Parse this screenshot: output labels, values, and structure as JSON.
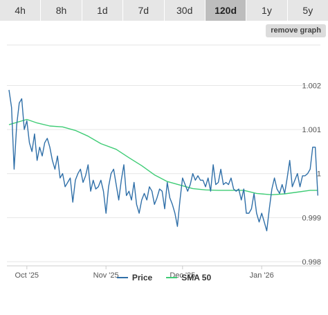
{
  "range_buttons": [
    {
      "label": "4h",
      "active": false
    },
    {
      "label": "8h",
      "active": false
    },
    {
      "label": "1d",
      "active": false
    },
    {
      "label": "7d",
      "active": false
    },
    {
      "label": "30d",
      "active": false
    },
    {
      "label": "120d",
      "active": true
    },
    {
      "label": "1y",
      "active": false
    },
    {
      "label": "5y",
      "active": false
    }
  ],
  "remove_graph_label": "remove graph",
  "chart_data": {
    "type": "line",
    "title": "",
    "xlabel": "",
    "ylabel": "",
    "ylim": [
      0.998,
      1.0022
    ],
    "y_ticks": [
      {
        "value": 0.998,
        "label": "0.998"
      },
      {
        "value": 0.999,
        "label": "0.999"
      },
      {
        "value": 1.0,
        "label": "1"
      },
      {
        "value": 1.001,
        "label": "1.001"
      },
      {
        "value": 1.002,
        "label": "1.002"
      }
    ],
    "x_ticks": [
      {
        "value": "2025-10-01",
        "label": "Oct '25"
      },
      {
        "value": "2025-11-01",
        "label": "Nov '25"
      },
      {
        "value": "2025-12-01",
        "label": "Dec '25"
      },
      {
        "value": "2026-01-01",
        "label": "Jan '26"
      }
    ],
    "x_range": [
      "2025-09-24",
      "2026-01-24"
    ],
    "grid": "horizontal",
    "legend_position": "bottom-center",
    "series": [
      {
        "name": "Price",
        "color": "#2f6fa8",
        "points": [
          [
            "2025-09-24",
            1.0019
          ],
          [
            "2025-09-25",
            1.0015
          ],
          [
            "2025-09-26",
            1.0001
          ],
          [
            "2025-09-27",
            1.0011
          ],
          [
            "2025-09-28",
            1.0016
          ],
          [
            "2025-09-29",
            1.0017
          ],
          [
            "2025-09-30",
            1.001
          ],
          [
            "2025-10-01",
            1.0012
          ],
          [
            "2025-10-02",
            1.0007
          ],
          [
            "2025-10-03",
            1.0005
          ],
          [
            "2025-10-04",
            1.0009
          ],
          [
            "2025-10-05",
            1.0003
          ],
          [
            "2025-10-06",
            1.0006
          ],
          [
            "2025-10-07",
            1.0004
          ],
          [
            "2025-10-08",
            1.0007
          ],
          [
            "2025-10-09",
            1.0008
          ],
          [
            "2025-10-10",
            1.0006
          ],
          [
            "2025-10-11",
            1.0003
          ],
          [
            "2025-10-12",
            1.0001
          ],
          [
            "2025-10-13",
            1.0004
          ],
          [
            "2025-10-14",
            0.9999
          ],
          [
            "2025-10-15",
            1.0
          ],
          [
            "2025-10-16",
            0.9997
          ],
          [
            "2025-10-17",
            0.9998
          ],
          [
            "2025-10-18",
            0.9999
          ],
          [
            "2025-10-19",
            0.99935
          ],
          [
            "2025-10-20",
            0.99985
          ],
          [
            "2025-10-21",
            1.0
          ],
          [
            "2025-10-22",
            1.0001
          ],
          [
            "2025-10-23",
            0.9998
          ],
          [
            "2025-10-24",
            0.99995
          ],
          [
            "2025-10-25",
            1.0002
          ],
          [
            "2025-10-26",
            0.9996
          ],
          [
            "2025-10-27",
            0.99985
          ],
          [
            "2025-10-28",
            0.99965
          ],
          [
            "2025-10-29",
            0.9997
          ],
          [
            "2025-10-30",
            0.99985
          ],
          [
            "2025-10-31",
            0.9996
          ],
          [
            "2025-11-01",
            0.9991
          ],
          [
            "2025-11-02",
            0.9997
          ],
          [
            "2025-11-03",
            1.0
          ],
          [
            "2025-11-04",
            1.0001
          ],
          [
            "2025-11-05",
            0.99975
          ],
          [
            "2025-11-06",
            0.9994
          ],
          [
            "2025-11-07",
            0.99985
          ],
          [
            "2025-11-08",
            1.0002
          ],
          [
            "2025-11-09",
            0.9995
          ],
          [
            "2025-11-10",
            0.9996
          ],
          [
            "2025-11-11",
            0.9994
          ],
          [
            "2025-11-12",
            0.9998
          ],
          [
            "2025-11-13",
            0.9993
          ],
          [
            "2025-11-14",
            0.9991
          ],
          [
            "2025-11-15",
            0.9994
          ],
          [
            "2025-11-16",
            0.99955
          ],
          [
            "2025-11-17",
            0.9994
          ],
          [
            "2025-11-18",
            0.9997
          ],
          [
            "2025-11-19",
            0.9996
          ],
          [
            "2025-11-20",
            0.9993
          ],
          [
            "2025-11-21",
            0.99945
          ],
          [
            "2025-11-22",
            0.99965
          ],
          [
            "2025-11-23",
            0.9996
          ],
          [
            "2025-11-24",
            0.9992
          ],
          [
            "2025-11-25",
            0.9998
          ],
          [
            "2025-11-26",
            0.99945
          ],
          [
            "2025-11-27",
            0.9993
          ],
          [
            "2025-11-28",
            0.9991
          ],
          [
            "2025-11-29",
            0.9988
          ],
          [
            "2025-11-30",
            0.9994
          ],
          [
            "2025-12-01",
            0.9999
          ],
          [
            "2025-12-02",
            0.99975
          ],
          [
            "2025-12-03",
            0.9996
          ],
          [
            "2025-12-04",
            0.99975
          ],
          [
            "2025-12-05",
            1.0
          ],
          [
            "2025-12-06",
            0.99985
          ],
          [
            "2025-12-07",
            0.99995
          ],
          [
            "2025-12-08",
            0.99985
          ],
          [
            "2025-12-09",
            0.99985
          ],
          [
            "2025-12-10",
            0.9997
          ],
          [
            "2025-12-11",
            0.9999
          ],
          [
            "2025-12-12",
            0.9996
          ],
          [
            "2025-12-13",
            1.0002
          ],
          [
            "2025-12-14",
            0.99975
          ],
          [
            "2025-12-15",
            0.9998
          ],
          [
            "2025-12-16",
            1.0001
          ],
          [
            "2025-12-17",
            0.99975
          ],
          [
            "2025-12-18",
            0.9998
          ],
          [
            "2025-12-19",
            0.99975
          ],
          [
            "2025-12-20",
            0.9999
          ],
          [
            "2025-12-21",
            0.99965
          ],
          [
            "2025-12-22",
            0.9996
          ],
          [
            "2025-12-23",
            0.99965
          ],
          [
            "2025-12-24",
            0.9994
          ],
          [
            "2025-12-25",
            0.99965
          ],
          [
            "2025-12-26",
            0.9991
          ],
          [
            "2025-12-27",
            0.9991
          ],
          [
            "2025-12-28",
            0.9992
          ],
          [
            "2025-12-29",
            0.99955
          ],
          [
            "2025-12-30",
            0.9991
          ],
          [
            "2025-12-31",
            0.9989
          ],
          [
            "2026-01-01",
            0.9991
          ],
          [
            "2026-01-02",
            0.9989
          ],
          [
            "2026-01-03",
            0.9987
          ],
          [
            "2026-01-04",
            0.9992
          ],
          [
            "2026-01-05",
            0.99965
          ],
          [
            "2026-01-06",
            0.9999
          ],
          [
            "2026-01-07",
            0.99965
          ],
          [
            "2026-01-08",
            0.99955
          ],
          [
            "2026-01-09",
            0.99975
          ],
          [
            "2026-01-10",
            0.99955
          ],
          [
            "2026-01-11",
            0.9999
          ],
          [
            "2026-01-12",
            1.0003
          ],
          [
            "2026-01-13",
            0.9997
          ],
          [
            "2026-01-14",
            0.99985
          ],
          [
            "2026-01-15",
            1.0
          ],
          [
            "2026-01-16",
            0.9997
          ],
          [
            "2026-01-17",
            0.99995
          ],
          [
            "2026-01-18",
            0.99995
          ],
          [
            "2026-01-19",
            1.0
          ],
          [
            "2026-01-20",
            1.0001
          ],
          [
            "2026-01-21",
            1.0006
          ],
          [
            "2026-01-22",
            1.0006
          ],
          [
            "2026-01-23",
            0.9995
          ]
        ]
      },
      {
        "name": "SMA 50",
        "color": "#3ecc75",
        "points": [
          [
            "2025-09-24",
            1.00111
          ],
          [
            "2025-10-01",
            1.00123
          ],
          [
            "2025-10-05",
            1.00115
          ],
          [
            "2025-10-10",
            1.00108
          ],
          [
            "2025-10-15",
            1.00106
          ],
          [
            "2025-10-20",
            1.00098
          ],
          [
            "2025-10-25",
            1.00085
          ],
          [
            "2025-10-30",
            1.00068
          ],
          [
            "2025-11-05",
            1.00055
          ],
          [
            "2025-11-10",
            1.00036
          ],
          [
            "2025-11-15",
            1.00018
          ],
          [
            "2025-11-20",
            0.99997
          ],
          [
            "2025-11-25",
            0.99982
          ],
          [
            "2025-11-30",
            0.99974
          ],
          [
            "2025-12-05",
            0.99966
          ],
          [
            "2025-12-10",
            0.99963
          ],
          [
            "2025-12-15",
            0.99962
          ],
          [
            "2025-12-20",
            0.99962
          ],
          [
            "2025-12-25",
            0.99962
          ],
          [
            "2025-12-30",
            0.99955
          ],
          [
            "2026-01-05",
            0.99952
          ],
          [
            "2026-01-10",
            0.99954
          ],
          [
            "2026-01-15",
            0.99958
          ],
          [
            "2026-01-20",
            0.99962
          ],
          [
            "2026-01-23",
            0.99962
          ]
        ]
      }
    ]
  }
}
